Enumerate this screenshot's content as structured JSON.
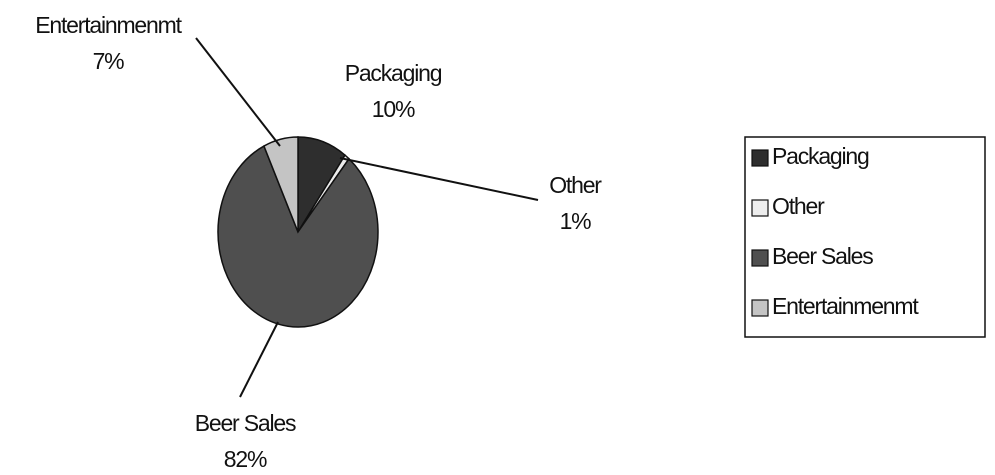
{
  "chart_data": {
    "type": "pie",
    "categories": [
      "Packaging",
      "Other",
      "Beer Sales",
      "Entertainmenmt"
    ],
    "values": [
      10,
      1,
      82,
      7
    ],
    "value_labels": [
      "10%",
      "1%",
      "82%",
      "7%"
    ],
    "colors": [
      "#2e2e2e",
      "#ededed",
      "#4f4f4f",
      "#c4c4c4"
    ],
    "legend": "right"
  }
}
